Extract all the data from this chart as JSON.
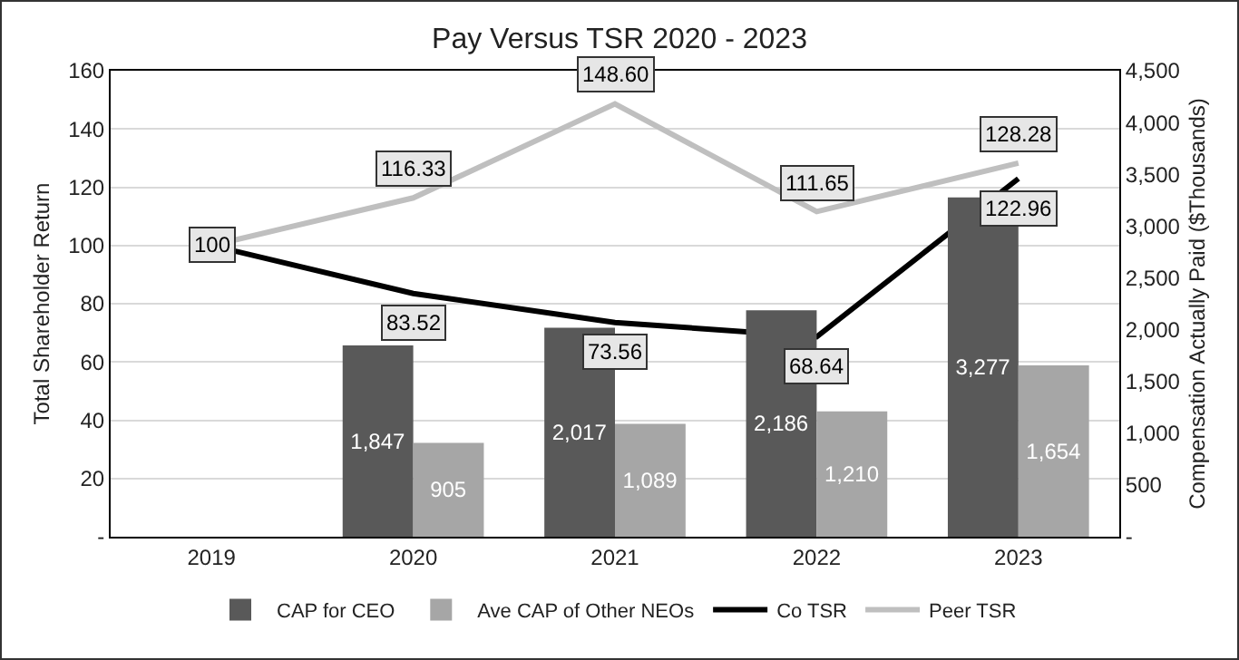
{
  "chart_data": {
    "type": "bar",
    "title": "Pay Versus TSR 2020 - 2023",
    "ylabel": "Total Shareholder Return",
    "y2label": "Compensation Actually Paid ($Thousands)",
    "categories": [
      "2019",
      "2020",
      "2021",
      "2022",
      "2023"
    ],
    "series": [
      {
        "name": "CAP for CEO",
        "axis": "y2",
        "color": "#595959",
        "values": [
          null,
          1847,
          2017,
          2186,
          3277
        ],
        "value_labels": [
          null,
          "1,847",
          "2,017",
          "2,186",
          "3,277"
        ]
      },
      {
        "name": "Ave CAP of Other NEOs",
        "axis": "y2",
        "color": "#a6a6a6",
        "values": [
          null,
          905,
          1089,
          1210,
          1654
        ],
        "value_labels": [
          null,
          "905",
          "1,089",
          "1,210",
          "1,654"
        ]
      },
      {
        "name": "Co TSR",
        "type": "line",
        "color": "#000000",
        "values": [
          100,
          83.52,
          73.56,
          68.64,
          122.96
        ],
        "value_labels": [
          "100",
          "83.52",
          "73.56",
          "68.64",
          "122.96"
        ]
      },
      {
        "name": "Peer TSR",
        "type": "line",
        "color": "#bfbfbf",
        "values": [
          100,
          116.33,
          148.6,
          111.65,
          128.28
        ],
        "value_labels": [
          null,
          "116.33",
          "148.60",
          "111.65",
          "128.28"
        ]
      }
    ],
    "ylim": [
      0,
      160
    ],
    "yticks": [
      {
        "value": 0,
        "label": "-"
      },
      20,
      40,
      60,
      80,
      100,
      120,
      140,
      160
    ],
    "y2lim": [
      0,
      4500
    ],
    "y2ticks": [
      {
        "value": 0,
        "label": "-"
      },
      500,
      {
        "value": 1000,
        "label": "1,000"
      },
      {
        "value": 1500,
        "label": "1,500"
      },
      {
        "value": 2000,
        "label": "2,000"
      },
      {
        "value": 2500,
        "label": "2,500"
      },
      {
        "value": 3000,
        "label": "3,000"
      },
      {
        "value": 3500,
        "label": "3,500"
      },
      {
        "value": 4000,
        "label": "4,000"
      },
      {
        "value": 4500,
        "label": "4,500"
      }
    ],
    "grid": "y",
    "legend": "bottom",
    "marker": "none",
    "line_style": "solid"
  }
}
